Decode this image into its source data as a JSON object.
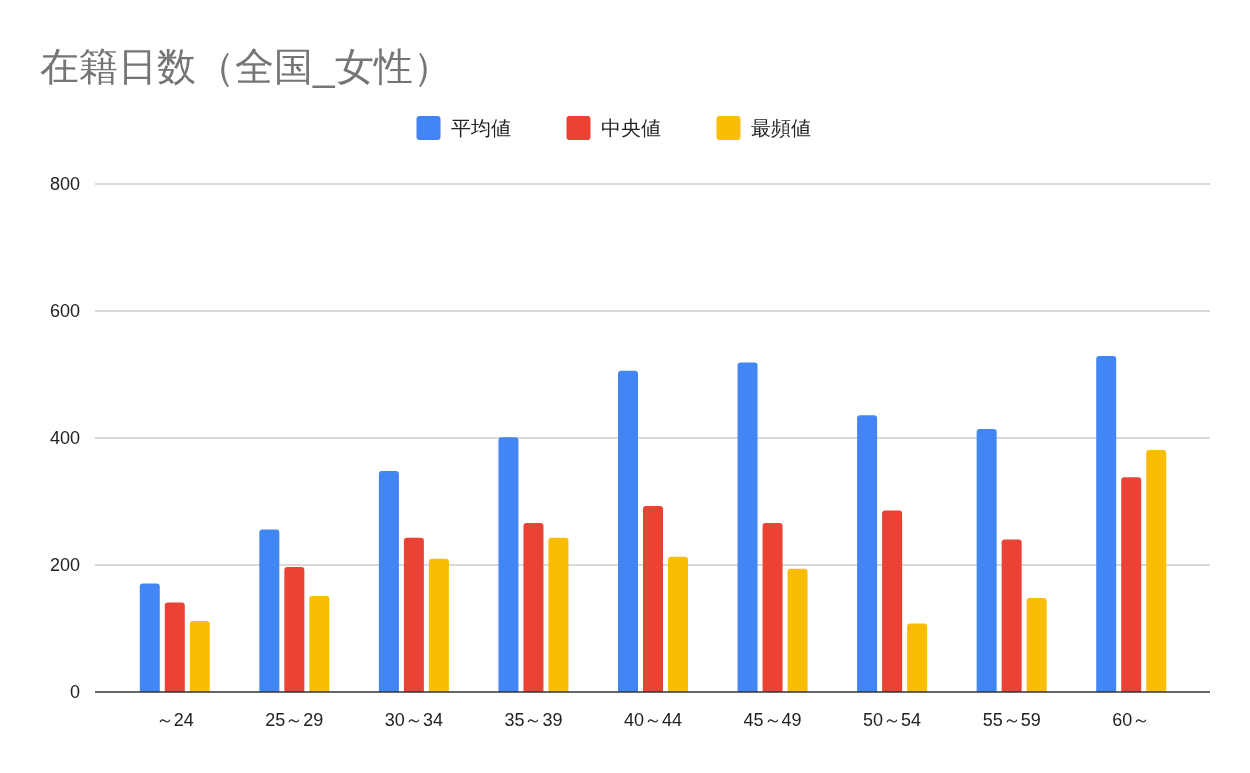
{
  "chart_data": {
    "type": "bar",
    "title": "在籍日数（全国_女性）",
    "categories": [
      "～24",
      "25～29",
      "30～34",
      "35～39",
      "40～44",
      "45～49",
      "50～54",
      "55～59",
      "60～"
    ],
    "series": [
      {
        "name": "平均値",
        "color": "#4285f4",
        "values": [
          171,
          256,
          348,
          401,
          506,
          519,
          436,
          414,
          529
        ]
      },
      {
        "name": "中央値",
        "color": "#ea4335",
        "values": [
          141,
          197,
          243,
          266,
          293,
          266,
          286,
          240,
          338
        ]
      },
      {
        "name": "最頻値",
        "color": "#fbbc04",
        "values": [
          112,
          151,
          210,
          243,
          213,
          194,
          108,
          148,
          381
        ]
      }
    ],
    "ylim": [
      0,
      800
    ],
    "yticks": [
      0,
      200,
      400,
      600,
      800
    ],
    "grid": "y",
    "legend": "top"
  }
}
